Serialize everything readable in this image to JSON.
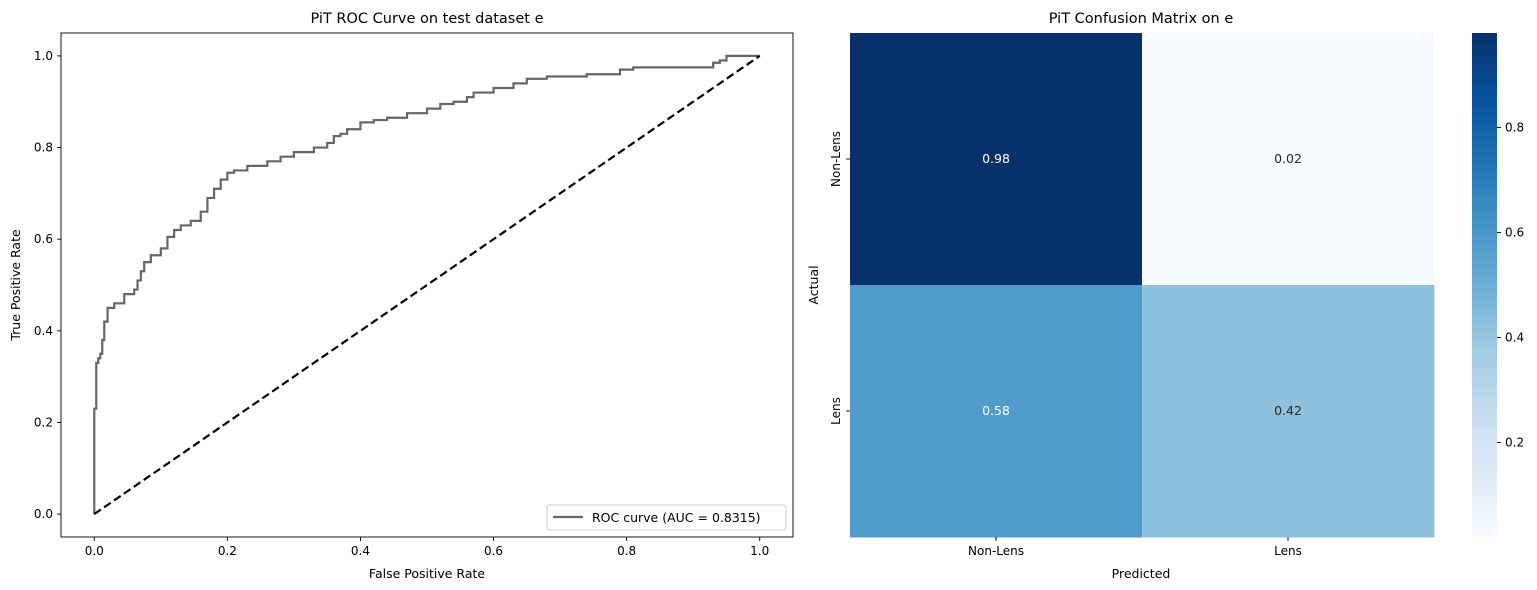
{
  "chart_data": [
    {
      "type": "line",
      "title": "PiT ROC Curve on test dataset e",
      "xlabel": "False Positive Rate",
      "ylabel": "True Positive Rate",
      "xlim": [
        -0.05,
        1.05
      ],
      "ylim": [
        -0.05,
        1.05
      ],
      "xticks": [
        "0.0",
        "0.2",
        "0.4",
        "0.6",
        "0.8",
        "1.0"
      ],
      "yticks": [
        "0.0",
        "0.2",
        "0.4",
        "0.6",
        "0.8",
        "1.0"
      ],
      "grid": false,
      "legend_position": "lower right",
      "series": [
        {
          "name": "ROC curve (AUC = 0.8315)",
          "color": "#666666",
          "x": [
            0,
            0.0,
            0.003,
            0.003,
            0.006,
            0.006,
            0.009,
            0.009,
            0.012,
            0.012,
            0.015,
            0.015,
            0.02,
            0.02,
            0.03,
            0.03,
            0.045,
            0.045,
            0.06,
            0.06,
            0.065,
            0.065,
            0.07,
            0.07,
            0.075,
            0.075,
            0.085,
            0.085,
            0.1,
            0.1,
            0.11,
            0.11,
            0.12,
            0.12,
            0.13,
            0.13,
            0.145,
            0.145,
            0.16,
            0.16,
            0.17,
            0.17,
            0.18,
            0.18,
            0.19,
            0.19,
            0.2,
            0.2,
            0.21,
            0.21,
            0.23,
            0.23,
            0.26,
            0.26,
            0.28,
            0.28,
            0.3,
            0.3,
            0.33,
            0.33,
            0.35,
            0.35,
            0.36,
            0.36,
            0.37,
            0.37,
            0.38,
            0.38,
            0.4,
            0.4,
            0.42,
            0.42,
            0.44,
            0.44,
            0.47,
            0.47,
            0.5,
            0.5,
            0.52,
            0.52,
            0.54,
            0.54,
            0.56,
            0.56,
            0.57,
            0.57,
            0.6,
            0.6,
            0.63,
            0.63,
            0.65,
            0.65,
            0.68,
            0.68,
            0.74,
            0.74,
            0.79,
            0.79,
            0.81,
            0.81,
            0.93,
            0.93,
            0.94,
            0.94,
            0.95,
            0.95,
            0.97,
            0.97,
            1.0
          ],
          "y": [
            0,
            0.23,
            0.23,
            0.33,
            0.33,
            0.34,
            0.34,
            0.35,
            0.35,
            0.38,
            0.38,
            0.42,
            0.42,
            0.45,
            0.45,
            0.46,
            0.46,
            0.48,
            0.48,
            0.49,
            0.49,
            0.51,
            0.51,
            0.53,
            0.53,
            0.55,
            0.55,
            0.565,
            0.565,
            0.58,
            0.58,
            0.605,
            0.605,
            0.62,
            0.62,
            0.63,
            0.63,
            0.64,
            0.64,
            0.66,
            0.66,
            0.69,
            0.69,
            0.71,
            0.71,
            0.73,
            0.73,
            0.745,
            0.745,
            0.75,
            0.75,
            0.76,
            0.76,
            0.77,
            0.77,
            0.78,
            0.78,
            0.79,
            0.79,
            0.8,
            0.8,
            0.81,
            0.81,
            0.825,
            0.825,
            0.83,
            0.83,
            0.84,
            0.84,
            0.855,
            0.855,
            0.86,
            0.86,
            0.865,
            0.865,
            0.875,
            0.875,
            0.885,
            0.885,
            0.895,
            0.895,
            0.9,
            0.9,
            0.91,
            0.91,
            0.92,
            0.92,
            0.93,
            0.93,
            0.94,
            0.94,
            0.95,
            0.95,
            0.955,
            0.955,
            0.96,
            0.96,
            0.97,
            0.97,
            0.975,
            0.975,
            0.985,
            0.985,
            0.99,
            0.99,
            1.0,
            1.0,
            1.0,
            1.0
          ]
        },
        {
          "color": "#000000",
          "style": "dashed",
          "x": [
            0,
            1
          ],
          "y": [
            0,
            1
          ]
        }
      ]
    },
    {
      "type": "heatmap",
      "title": "PiT Confusion Matrix on e",
      "xlabel": "Predicted",
      "ylabel": "Actual",
      "x_categories": [
        "Non-Lens",
        "Lens"
      ],
      "y_categories": [
        "Non-Lens",
        "Lens"
      ],
      "values": [
        [
          0.98,
          0.02
        ],
        [
          0.58,
          0.42
        ]
      ],
      "labels": [
        [
          "0.98",
          "0.02"
        ],
        [
          "0.58",
          "0.42"
        ]
      ],
      "colormap": "Blues",
      "color_range": [
        0.02,
        0.98
      ],
      "colorbar_ticks": [
        "0.2",
        "0.4",
        "0.6",
        "0.8"
      ],
      "colorbar_tick_values": [
        0.2,
        0.4,
        0.6,
        0.8
      ]
    }
  ]
}
